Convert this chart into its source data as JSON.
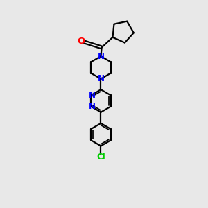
{
  "bg_color": "#e8e8e8",
  "bond_color": "#000000",
  "N_color": "#0000ff",
  "O_color": "#ff0000",
  "Cl_color": "#00cc00",
  "line_width": 1.6,
  "font_size": 8.5,
  "xlim": [
    0,
    10
  ],
  "ylim": [
    0,
    13
  ]
}
